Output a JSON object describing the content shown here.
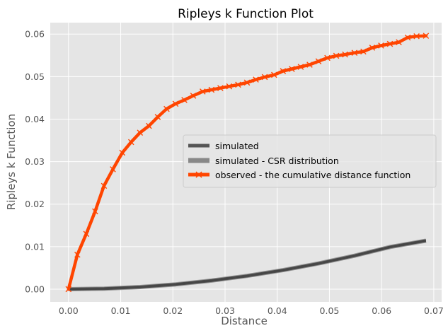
{
  "chart_data": {
    "type": "line",
    "title": "Ripleys k Function Plot",
    "xlabel": "Distance",
    "ylabel": "Ripleys k Function",
    "xlim": [
      -0.0035,
      0.0715
    ],
    "ylim": [
      -0.003,
      0.0627
    ],
    "x_ticks": [
      0.0,
      0.01,
      0.02,
      0.03,
      0.04,
      0.05,
      0.06,
      0.07
    ],
    "x_tick_labels": [
      "0.00",
      "0.01",
      "0.02",
      "0.03",
      "0.04",
      "0.05",
      "0.06",
      "0.07"
    ],
    "y_ticks": [
      0.0,
      0.01,
      0.02,
      0.03,
      0.04,
      0.05,
      0.06
    ],
    "y_tick_labels": [
      "0.00",
      "0.01",
      "0.02",
      "0.03",
      "0.04",
      "0.05",
      "0.06"
    ],
    "grid": true,
    "legend_position": "center-right",
    "series": [
      {
        "name": "simulated",
        "color": "#555555",
        "style": "band-lines",
        "x": [
          0.0,
          0.00685,
          0.0137,
          0.02055,
          0.0274,
          0.03425,
          0.0411,
          0.04795,
          0.0548,
          0.06165,
          0.0685
        ],
        "y": [
          0.0,
          0.00012,
          0.0005,
          0.00112,
          0.002,
          0.00312,
          0.00446,
          0.00604,
          0.00786,
          0.00992,
          0.0114
        ]
      },
      {
        "name": "simulated - CSR distribution",
        "color": "#888888",
        "style": "band",
        "x": [
          0.0,
          0.00685,
          0.0137,
          0.02055,
          0.0274,
          0.03425,
          0.0411,
          0.04795,
          0.0548,
          0.06165,
          0.0685
        ],
        "y": [
          0.0,
          0.00012,
          0.0005,
          0.00112,
          0.002,
          0.00312,
          0.00446,
          0.00604,
          0.00786,
          0.00992,
          0.0114
        ]
      },
      {
        "name": "observed - the cumulative distance function",
        "color": "#ff4500",
        "style": "line-x-markers",
        "x": [
          0.0,
          0.0017,
          0.0034,
          0.0051,
          0.0068,
          0.0085,
          0.0103,
          0.012,
          0.0137,
          0.0154,
          0.0171,
          0.0188,
          0.0205,
          0.0222,
          0.0239,
          0.0257,
          0.0274,
          0.0291,
          0.0308,
          0.0325,
          0.0342,
          0.0359,
          0.0376,
          0.0394,
          0.0411,
          0.0428,
          0.0445,
          0.0462,
          0.0479,
          0.0496,
          0.0513,
          0.053,
          0.0548,
          0.0565,
          0.0582,
          0.0599,
          0.0616,
          0.0633,
          0.065,
          0.0667,
          0.0685
        ],
        "y": [
          0.0,
          0.0081,
          0.013,
          0.0183,
          0.0243,
          0.0282,
          0.0321,
          0.0346,
          0.0368,
          0.0384,
          0.0405,
          0.0424,
          0.0436,
          0.0445,
          0.0455,
          0.0465,
          0.0469,
          0.0473,
          0.0477,
          0.0481,
          0.0486,
          0.0493,
          0.0499,
          0.0504,
          0.0513,
          0.0518,
          0.0523,
          0.0528,
          0.0536,
          0.0544,
          0.0549,
          0.0552,
          0.0556,
          0.0559,
          0.0568,
          0.0573,
          0.0577,
          0.0581,
          0.0592,
          0.0595,
          0.0596
        ]
      }
    ]
  }
}
